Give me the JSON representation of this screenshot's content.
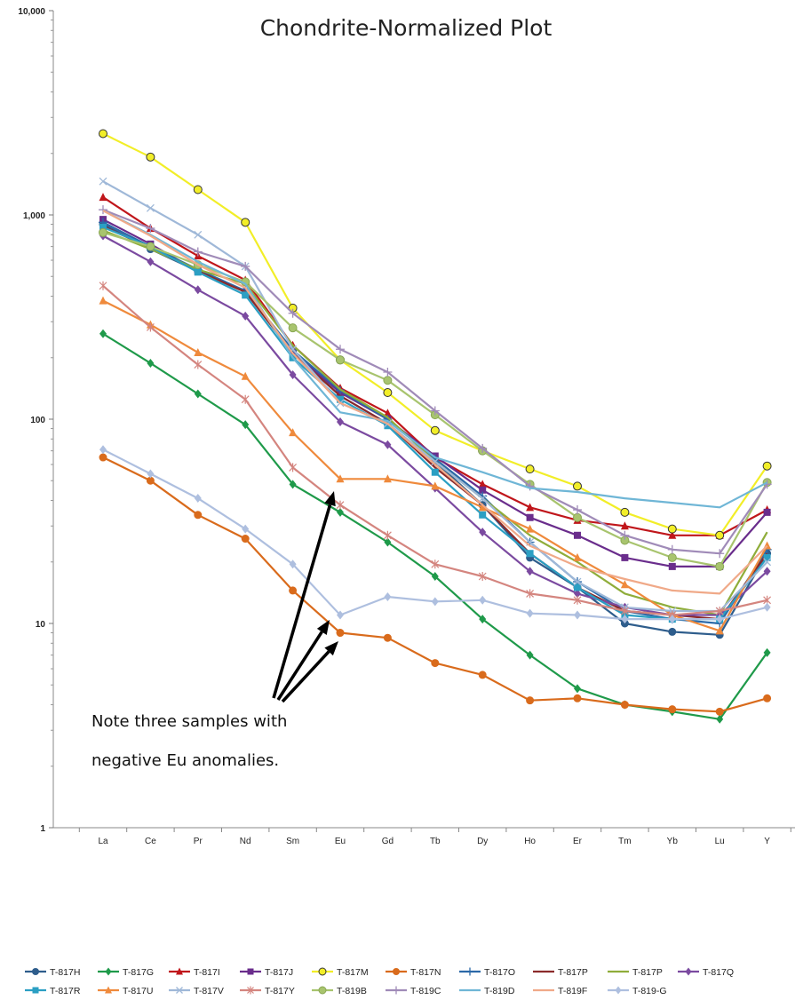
{
  "chart_data": {
    "type": "line",
    "title": "Chondrite-Normalized Plot",
    "xlabel": "",
    "ylabel": "",
    "yscale": "log",
    "ylim": [
      1,
      10000
    ],
    "ytick_labels": [
      "1",
      "10",
      "100",
      "1,000",
      "10,000"
    ],
    "categories": [
      "La",
      "Ce",
      "Pr",
      "Nd",
      "Sm",
      "Eu",
      "Gd",
      "Tb",
      "Dy",
      "Ho",
      "Er",
      "Tm",
      "Yb",
      "Lu",
      "Y"
    ],
    "grid": false,
    "legend_position": "bottom",
    "annotation": {
      "lines": [
        "Note three samples with",
        "negative Eu anomalies."
      ]
    },
    "series": [
      {
        "name": "T-817H",
        "color": "#2e5d8c",
        "marker": "circle",
        "values": [
          900,
          680,
          530,
          420,
          215,
          130,
          95,
          62,
          38,
          21,
          15,
          10,
          9.1,
          8.8,
          22
        ]
      },
      {
        "name": "T-817G",
        "color": "#1f9a4a",
        "marker": "diamond",
        "values": [
          262,
          188,
          133,
          94,
          48,
          35,
          25,
          17,
          10.5,
          7,
          4.8,
          4.0,
          3.7,
          3.4,
          7.2
        ]
      },
      {
        "name": "T-817I",
        "color": "#c0161b",
        "marker": "triangle",
        "values": [
          1220,
          860,
          630,
          480,
          230,
          142,
          107,
          65,
          48,
          37,
          32,
          30,
          27,
          27,
          36
        ]
      },
      {
        "name": "T-817J",
        "color": "#6a2d8c",
        "marker": "square",
        "values": [
          950,
          720,
          530,
          420,
          215,
          135,
          100,
          66,
          45,
          33,
          27,
          21,
          19,
          19,
          35
        ]
      },
      {
        "name": "T-817M",
        "color": "#f2ee28",
        "marker": "circle-y",
        "values": [
          2500,
          1920,
          1330,
          920,
          350,
          195,
          135,
          88,
          70,
          57,
          47,
          35,
          29,
          27,
          59
        ]
      },
      {
        "name": "T-817N",
        "color": "#d96b1c",
        "marker": "circle",
        "values": [
          65,
          50,
          34,
          26,
          14.5,
          9,
          8.5,
          6.4,
          5.6,
          4.2,
          4.3,
          4.0,
          3.8,
          3.7,
          4.3
        ]
      },
      {
        "name": "T-817O",
        "color": "#2b69a8",
        "marker": "plus",
        "values": [
          920,
          700,
          540,
          425,
          218,
          138,
          100,
          64,
          42,
          25,
          16,
          11.5,
          10.5,
          10,
          23
        ]
      },
      {
        "name": "T-817P",
        "color": "#8b2a2a",
        "marker": "none",
        "values": [
          880,
          690,
          530,
          420,
          210,
          130,
          95,
          58,
          38,
          22,
          15,
          11.5,
          11,
          10.5,
          22
        ]
      },
      {
        "name": "T-817P",
        "color": "#8fad3a",
        "marker": "none",
        "values": [
          840,
          680,
          540,
          460,
          230,
          140,
          102,
          62,
          41,
          27,
          20,
          14,
          12,
          11,
          28
        ]
      },
      {
        "name": "T-817Q",
        "color": "#7b4aa0",
        "marker": "diamond",
        "values": [
          790,
          590,
          430,
          320,
          165,
          97,
          75,
          46,
          28,
          18,
          14,
          12,
          11,
          11,
          18
        ]
      },
      {
        "name": "T-817R",
        "color": "#2b9fc3",
        "marker": "square",
        "values": [
          870,
          700,
          525,
          405,
          200,
          125,
          93,
          55,
          34,
          22,
          15,
          11,
          10.5,
          10.5,
          21
        ]
      },
      {
        "name": "T-817U",
        "color": "#ef8a3c",
        "marker": "triangle",
        "values": [
          380,
          290,
          212,
          162,
          86,
          51,
          51,
          47,
          37,
          29,
          21,
          15.5,
          11,
          9.2,
          24
        ]
      },
      {
        "name": "T-817V",
        "color": "#9fb8d8",
        "marker": "x",
        "values": [
          1460,
          1080,
          800,
          560,
          220,
          120,
          95,
          62,
          41,
          25,
          16,
          12,
          11.5,
          11.5,
          20
        ]
      },
      {
        "name": "T-817Y",
        "color": "#d4857f",
        "marker": "asterisk",
        "values": [
          450,
          282,
          185,
          125,
          58,
          38,
          27,
          19.5,
          17,
          14,
          13,
          11.5,
          11,
          11.5,
          13
        ]
      },
      {
        "name": "T-819B",
        "color": "#a8c46e",
        "marker": "circle-g",
        "values": [
          820,
          700,
          570,
          470,
          280,
          195,
          155,
          105,
          70,
          48,
          33,
          25.5,
          21,
          19,
          49
        ]
      },
      {
        "name": "T-819C",
        "color": "#a08bb8",
        "marker": "plus",
        "values": [
          1060,
          860,
          660,
          560,
          330,
          220,
          170,
          110,
          72,
          47,
          36,
          27,
          23,
          22,
          48
        ]
      },
      {
        "name": "T-819D",
        "color": "#6fb6d6",
        "marker": "none",
        "values": [
          1050,
          800,
          590,
          460,
          200,
          108,
          98,
          65,
          55,
          46,
          44,
          41,
          39,
          37,
          49
        ]
      },
      {
        "name": "T-819F",
        "color": "#f0a988",
        "marker": "none",
        "values": [
          1050,
          790,
          570,
          440,
          210,
          120,
          95,
          60,
          38,
          24,
          19,
          16.5,
          14.5,
          14,
          24
        ]
      },
      {
        "name": "T-819-G",
        "color": "#aebfdf",
        "marker": "diamond",
        "values": [
          71,
          54,
          41,
          29,
          19.5,
          11,
          13.5,
          12.8,
          13,
          11.2,
          11,
          10.5,
          10.5,
          10.5,
          12
        ]
      }
    ]
  }
}
